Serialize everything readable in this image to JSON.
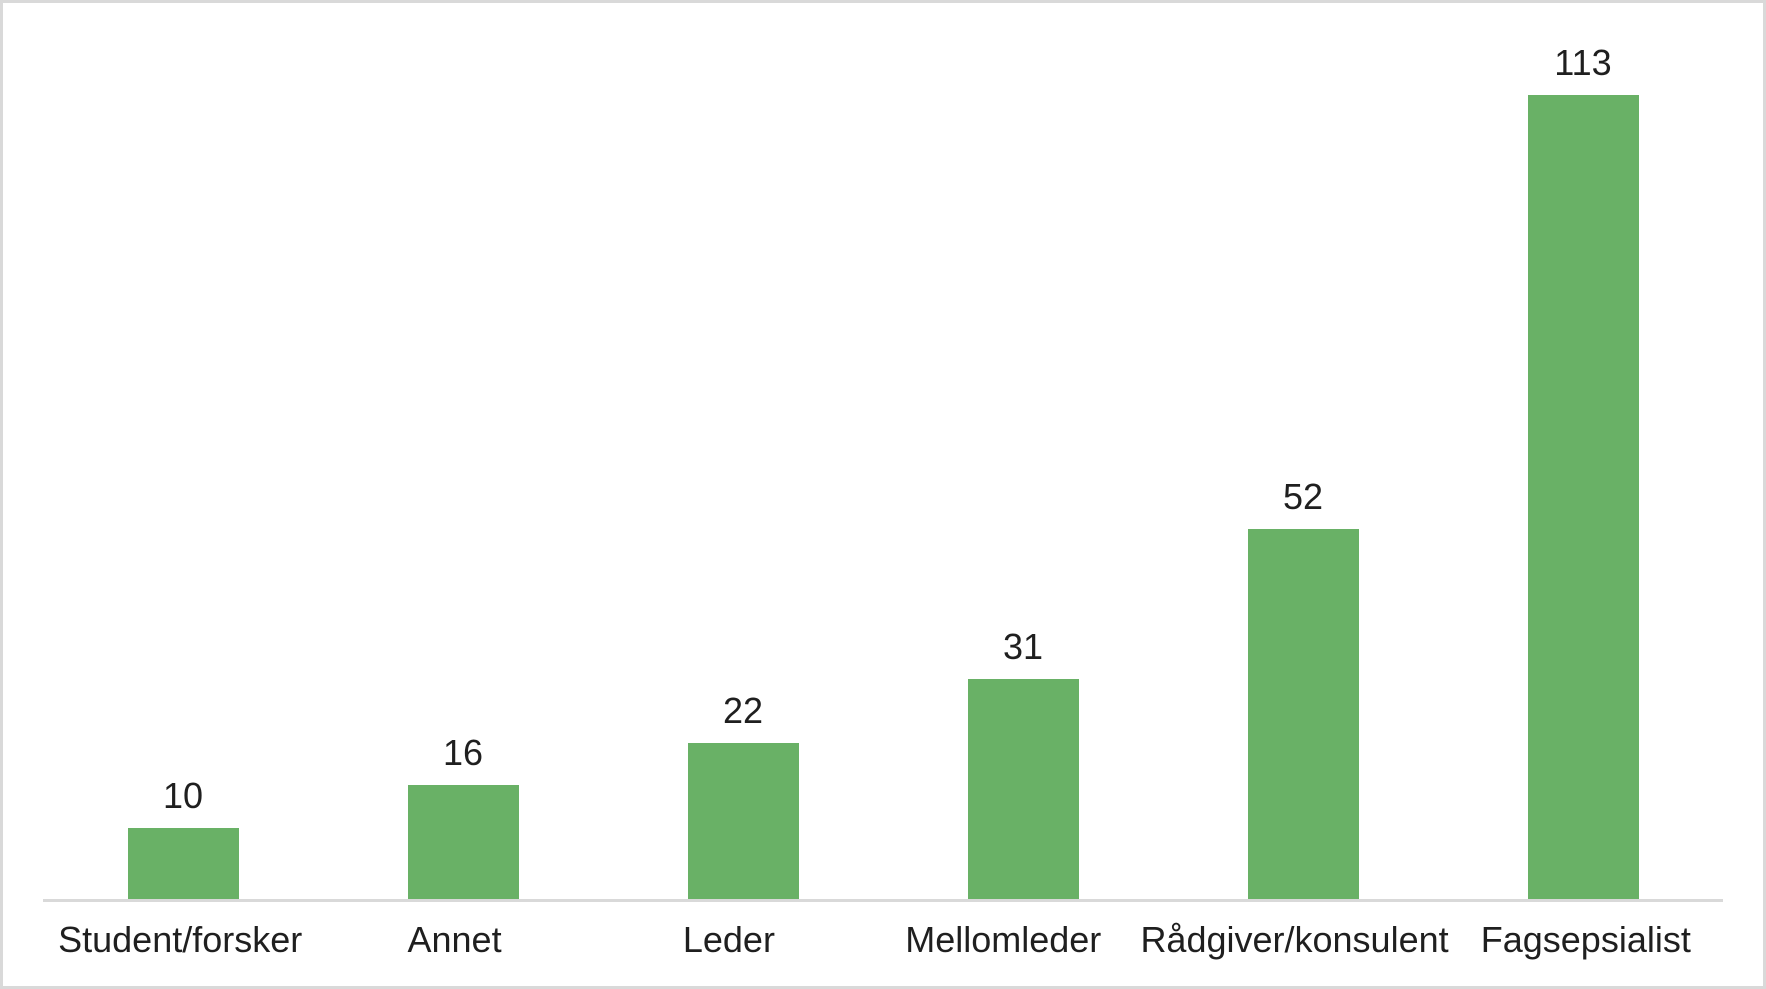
{
  "chart_data": {
    "type": "bar",
    "title": "",
    "xlabel": "",
    "ylabel": "",
    "categories": [
      "Student/forsker",
      "Annet",
      "Leder",
      "Mellomleder",
      "Rådgiver/konsulent",
      "Fagsepsialist"
    ],
    "values": [
      10,
      16,
      22,
      31,
      52,
      113
    ],
    "data_labels": [
      "10",
      "16",
      "22",
      "31",
      "52",
      "113"
    ],
    "ylim": [
      0,
      126
    ],
    "grid": false,
    "legend": false,
    "y_axis_visible": false,
    "colors": {
      "bar": "#69b166",
      "label_text": "#1f1f1f",
      "axis_line": "#d9d9d9",
      "frame_border": "#d9d9d9",
      "background": "#ffffff"
    }
  }
}
